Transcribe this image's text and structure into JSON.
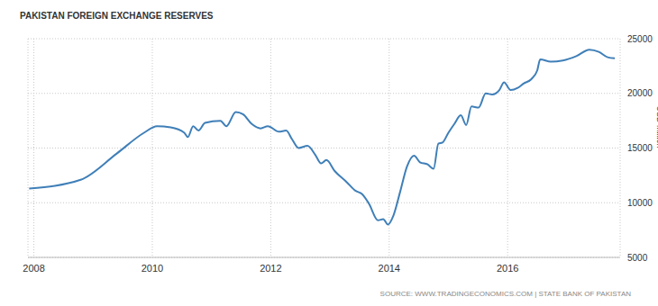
{
  "chart_data": {
    "type": "line",
    "title": "PAKISTAN FOREIGN EXCHANGE RESERVES",
    "ylabel": "USD Million",
    "source": "SOURCE: WWW.TRADINGECONOMICS.COM | STATE BANK OF PAKISTAN",
    "color": "#3f7fb8",
    "grid": true,
    "x": [
      2007.92,
      2008.79,
      2009.4,
      2009.86,
      2010.08,
      2010.31,
      2010.54,
      2010.6,
      2010.69,
      2010.78,
      2010.89,
      2011.15,
      2011.25,
      2011.41,
      2011.53,
      2011.68,
      2011.83,
      2011.95,
      2012.14,
      2012.26,
      2012.36,
      2012.47,
      2012.62,
      2012.75,
      2012.85,
      2012.94,
      2013.08,
      2013.28,
      2013.43,
      2013.54,
      2013.66,
      2013.81,
      2013.9,
      2013.98,
      2014.07,
      2014.19,
      2014.3,
      2014.42,
      2014.52,
      2014.65,
      2014.75,
      2014.83,
      2014.9,
      2015.0,
      2015.1,
      2015.21,
      2015.3,
      2015.39,
      2015.51,
      2015.63,
      2015.74,
      2015.86,
      2015.94,
      2016.05,
      2016.17,
      2016.27,
      2016.4,
      2016.5,
      2016.55,
      2016.73,
      2016.93,
      2017.16,
      2017.38,
      2017.54,
      2017.69,
      2017.81
    ],
    "values": [
      11300,
      12100,
      14500,
      16400,
      17000,
      16900,
      16400,
      16000,
      17000,
      16600,
      17300,
      17500,
      17000,
      18300,
      18100,
      17200,
      16800,
      17000,
      16500,
      16600,
      15800,
      15000,
      15200,
      14400,
      13600,
      13900,
      12900,
      11900,
      11100,
      10800,
      9900,
      8400,
      8500,
      8000,
      8800,
      11100,
      13300,
      14300,
      13700,
      13500,
      13100,
      15400,
      15500,
      16400,
      17200,
      18000,
      17100,
      18800,
      18700,
      20000,
      19900,
      20300,
      21000,
      20300,
      20500,
      20900,
      21300,
      22100,
      23100,
      22900,
      23000,
      23400,
      24000,
      23800,
      23300,
      23200
    ],
    "xlim": [
      2007.9,
      2017.9
    ],
    "xticks": [
      2008,
      2010,
      2012,
      2014,
      2016
    ],
    "ylim": [
      5000,
      25000
    ],
    "yticks": [
      5000,
      10000,
      15000,
      20000,
      25000
    ]
  }
}
